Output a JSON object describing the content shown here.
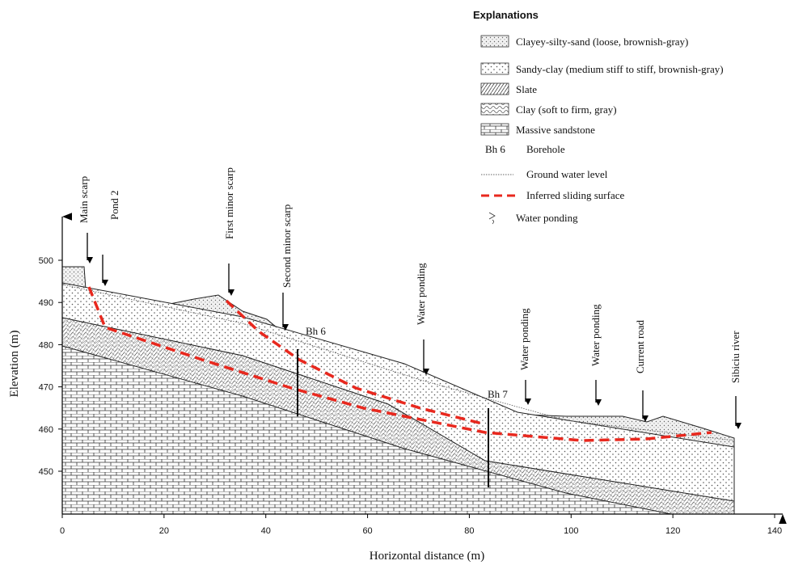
{
  "axes": {
    "x_label": "Horizontal distance (m)",
    "y_label": "Elevation (m)",
    "x_ticks": [
      0,
      20,
      40,
      60,
      80,
      100,
      120,
      140
    ],
    "y_ticks": [
      450,
      460,
      470,
      480,
      490,
      500
    ]
  },
  "legend": {
    "title": "Explanations",
    "items": [
      {
        "label": "Clayey-silty-sand (loose, brownish-gray)"
      },
      {
        "label": "Sandy-clay (medium stiff to stiff, brownish-gray)"
      },
      {
        "label": "Slate"
      },
      {
        "label": "Clay (soft to firm, gray)"
      },
      {
        "label": "Massive sandstone"
      },
      {
        "symbol": "Bh 6",
        "label": "Borehole"
      },
      {
        "label": "Ground water level"
      },
      {
        "label": "Inferred sliding surface"
      },
      {
        "label": "Water ponding"
      }
    ]
  },
  "annotations": [
    "Main scarp",
    "Pond 2",
    "First minor scarp",
    "Second minor scarp",
    "Water ponding",
    "Water ponding",
    "Water ponding",
    "Current road",
    "Sibiciu river",
    "Bh 6",
    "Bh 7"
  ]
}
